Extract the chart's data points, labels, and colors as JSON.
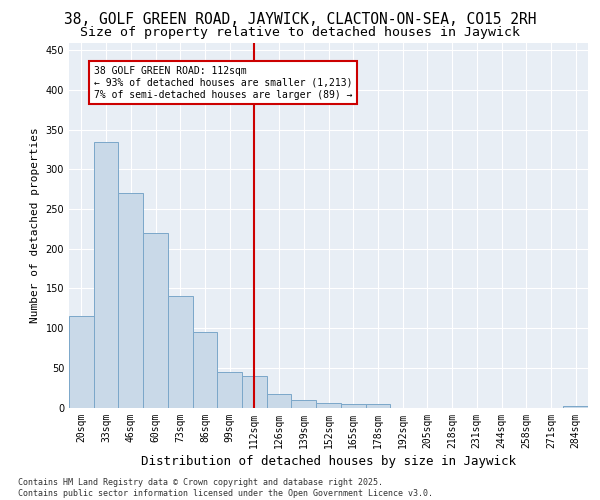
{
  "title1": "38, GOLF GREEN ROAD, JAYWICK, CLACTON-ON-SEA, CO15 2RH",
  "title2": "Size of property relative to detached houses in Jaywick",
  "xlabel": "Distribution of detached houses by size in Jaywick",
  "ylabel": "Number of detached properties",
  "categories": [
    "20sqm",
    "33sqm",
    "46sqm",
    "60sqm",
    "73sqm",
    "86sqm",
    "99sqm",
    "112sqm",
    "126sqm",
    "139sqm",
    "152sqm",
    "165sqm",
    "178sqm",
    "192sqm",
    "205sqm",
    "218sqm",
    "231sqm",
    "244sqm",
    "258sqm",
    "271sqm",
    "284sqm"
  ],
  "values": [
    115,
    335,
    270,
    220,
    140,
    95,
    45,
    40,
    17,
    10,
    6,
    5,
    5,
    0,
    0,
    0,
    0,
    0,
    0,
    0,
    2
  ],
  "bar_color": "#c9d9e8",
  "bar_edge_color": "#7ba7c9",
  "highlight_index": 7,
  "highlight_line_color": "#cc0000",
  "ylim": [
    0,
    460
  ],
  "yticks": [
    0,
    50,
    100,
    150,
    200,
    250,
    300,
    350,
    400,
    450
  ],
  "annotation_text": "38 GOLF GREEN ROAD: 112sqm\n← 93% of detached houses are smaller (1,213)\n7% of semi-detached houses are larger (89) →",
  "annotation_box_color": "#cc0000",
  "background_color": "#e8eef5",
  "footer_text": "Contains HM Land Registry data © Crown copyright and database right 2025.\nContains public sector information licensed under the Open Government Licence v3.0.",
  "title1_fontsize": 10.5,
  "title2_fontsize": 9.5,
  "xlabel_fontsize": 9,
  "ylabel_fontsize": 8,
  "tick_fontsize": 7,
  "annotation_fontsize": 7,
  "footer_fontsize": 6
}
